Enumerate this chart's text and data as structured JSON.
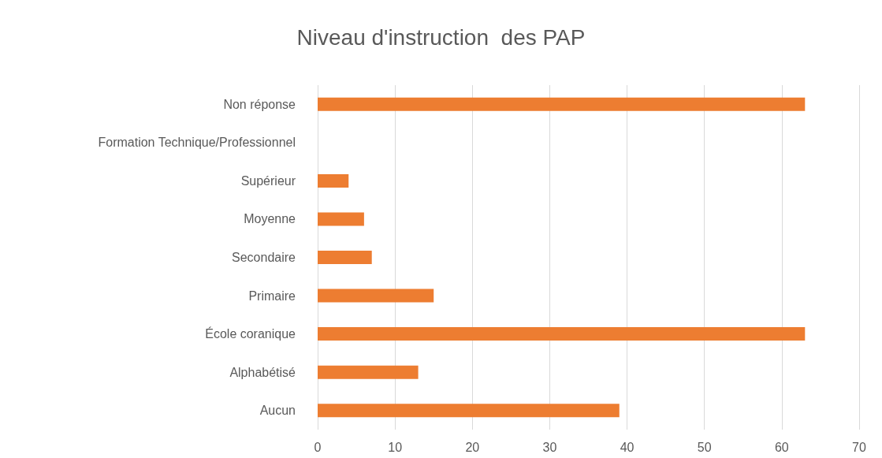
{
  "chart_data": {
    "type": "bar",
    "orientation": "horizontal",
    "title": "Niveau d'instruction  des PAP",
    "categories": [
      "Non réponse",
      "Formation Technique/Professionnel",
      "Supérieur",
      "Moyenne",
      "Secondaire",
      "Primaire",
      "École coranique",
      "Alphabétisé",
      "Aucun"
    ],
    "values": [
      63,
      0,
      4,
      6,
      7,
      15,
      63,
      13,
      39
    ],
    "color": "#ed7d31",
    "xlim": [
      0,
      70
    ],
    "xticks": [
      0,
      10,
      20,
      30,
      40,
      50,
      60,
      70
    ],
    "grid": "x"
  }
}
